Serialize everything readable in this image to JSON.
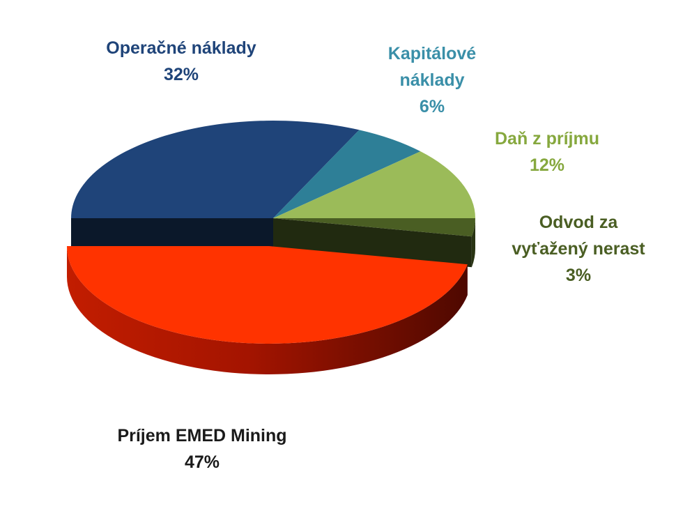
{
  "chart_data": {
    "type": "pie",
    "title": "",
    "slices": [
      {
        "label_lines": [
          "Operačné náklady"
        ],
        "value_label": "32%",
        "value": 32,
        "color": "#1f4479",
        "label_color": "#1f4479"
      },
      {
        "label_lines": [
          "Kapitálové",
          "náklady"
        ],
        "value_label": "6%",
        "value": 6,
        "color": "#2e7f97",
        "label_color": "#3a8fa8"
      },
      {
        "label_lines": [
          "Daň z príjmu"
        ],
        "value_label": "12%",
        "value": 12,
        "color": "#9bbb59",
        "label_color": "#86a83e"
      },
      {
        "label_lines": [
          "Odvod za",
          "vyťažený nerast"
        ],
        "value_label": "3%",
        "value": 3,
        "color": "#4a5e23",
        "label_color": "#4a5e23"
      },
      {
        "label_lines": [
          "Príjem EMED Mining"
        ],
        "value_label": "47%",
        "value": 47,
        "color": "#ff3300",
        "label_color": "#1a1a1a"
      }
    ],
    "exploded_slice": "Príjem EMED Mining",
    "legend": "none"
  }
}
